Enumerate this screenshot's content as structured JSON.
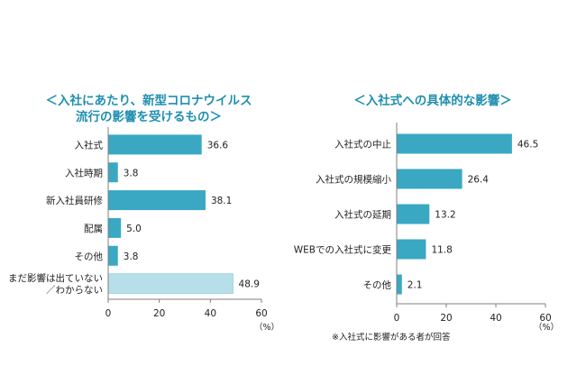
{
  "chart_data": [
    {
      "type": "bar",
      "orientation": "horizontal",
      "title_lines": [
        "＜入社にあたり、新型コロナウイルス",
        "流行の影響を受けるもの＞"
      ],
      "categories": [
        [
          "入社式"
        ],
        [
          "入社時期"
        ],
        [
          "新入社員研修"
        ],
        [
          "配属"
        ],
        [
          "その他"
        ],
        [
          "まだ影響は出ていない",
          "／わからない"
        ]
      ],
      "values": [
        36.6,
        3.8,
        38.1,
        5.0,
        3.8,
        48.9
      ],
      "value_labels": [
        "36.6",
        "3.8",
        "38.1",
        "5.0",
        "3.8",
        "48.9"
      ],
      "bar_colors": [
        "#3aa8c3",
        "#3aa8c3",
        "#3aa8c3",
        "#3aa8c3",
        "#3aa8c3",
        "#b7dfe9"
      ],
      "xlim": [
        0,
        60
      ],
      "xticks": [
        "0",
        "20",
        "40",
        "60"
      ],
      "unit": "（%）",
      "grid": false
    },
    {
      "type": "bar",
      "orientation": "horizontal",
      "title_lines": [
        "＜入社式への具体的な影響＞"
      ],
      "categories": [
        [
          "入社式の中止"
        ],
        [
          "入社式の規模縮小"
        ],
        [
          "入社式の延期"
        ],
        [
          "WEBでの入社式に変更"
        ],
        [
          "その他"
        ]
      ],
      "values": [
        46.5,
        26.4,
        13.2,
        11.8,
        2.1
      ],
      "value_labels": [
        "46.5",
        "26.4",
        "13.2",
        "11.8",
        "2.1"
      ],
      "bar_colors": [
        "#3aa8c3",
        "#3aa8c3",
        "#3aa8c3",
        "#3aa8c3",
        "#3aa8c3"
      ],
      "xlim": [
        0,
        60
      ],
      "xticks": [
        "0",
        "20",
        "40",
        "60"
      ],
      "unit": "（%）",
      "footnote": "※入社式に影響がある者が回答",
      "grid": false
    }
  ],
  "colors": {
    "title": "#1f8fb0",
    "bar": "#3aa8c3",
    "bar_light": "#b7dfe9",
    "axis": "#7f7f7f"
  }
}
